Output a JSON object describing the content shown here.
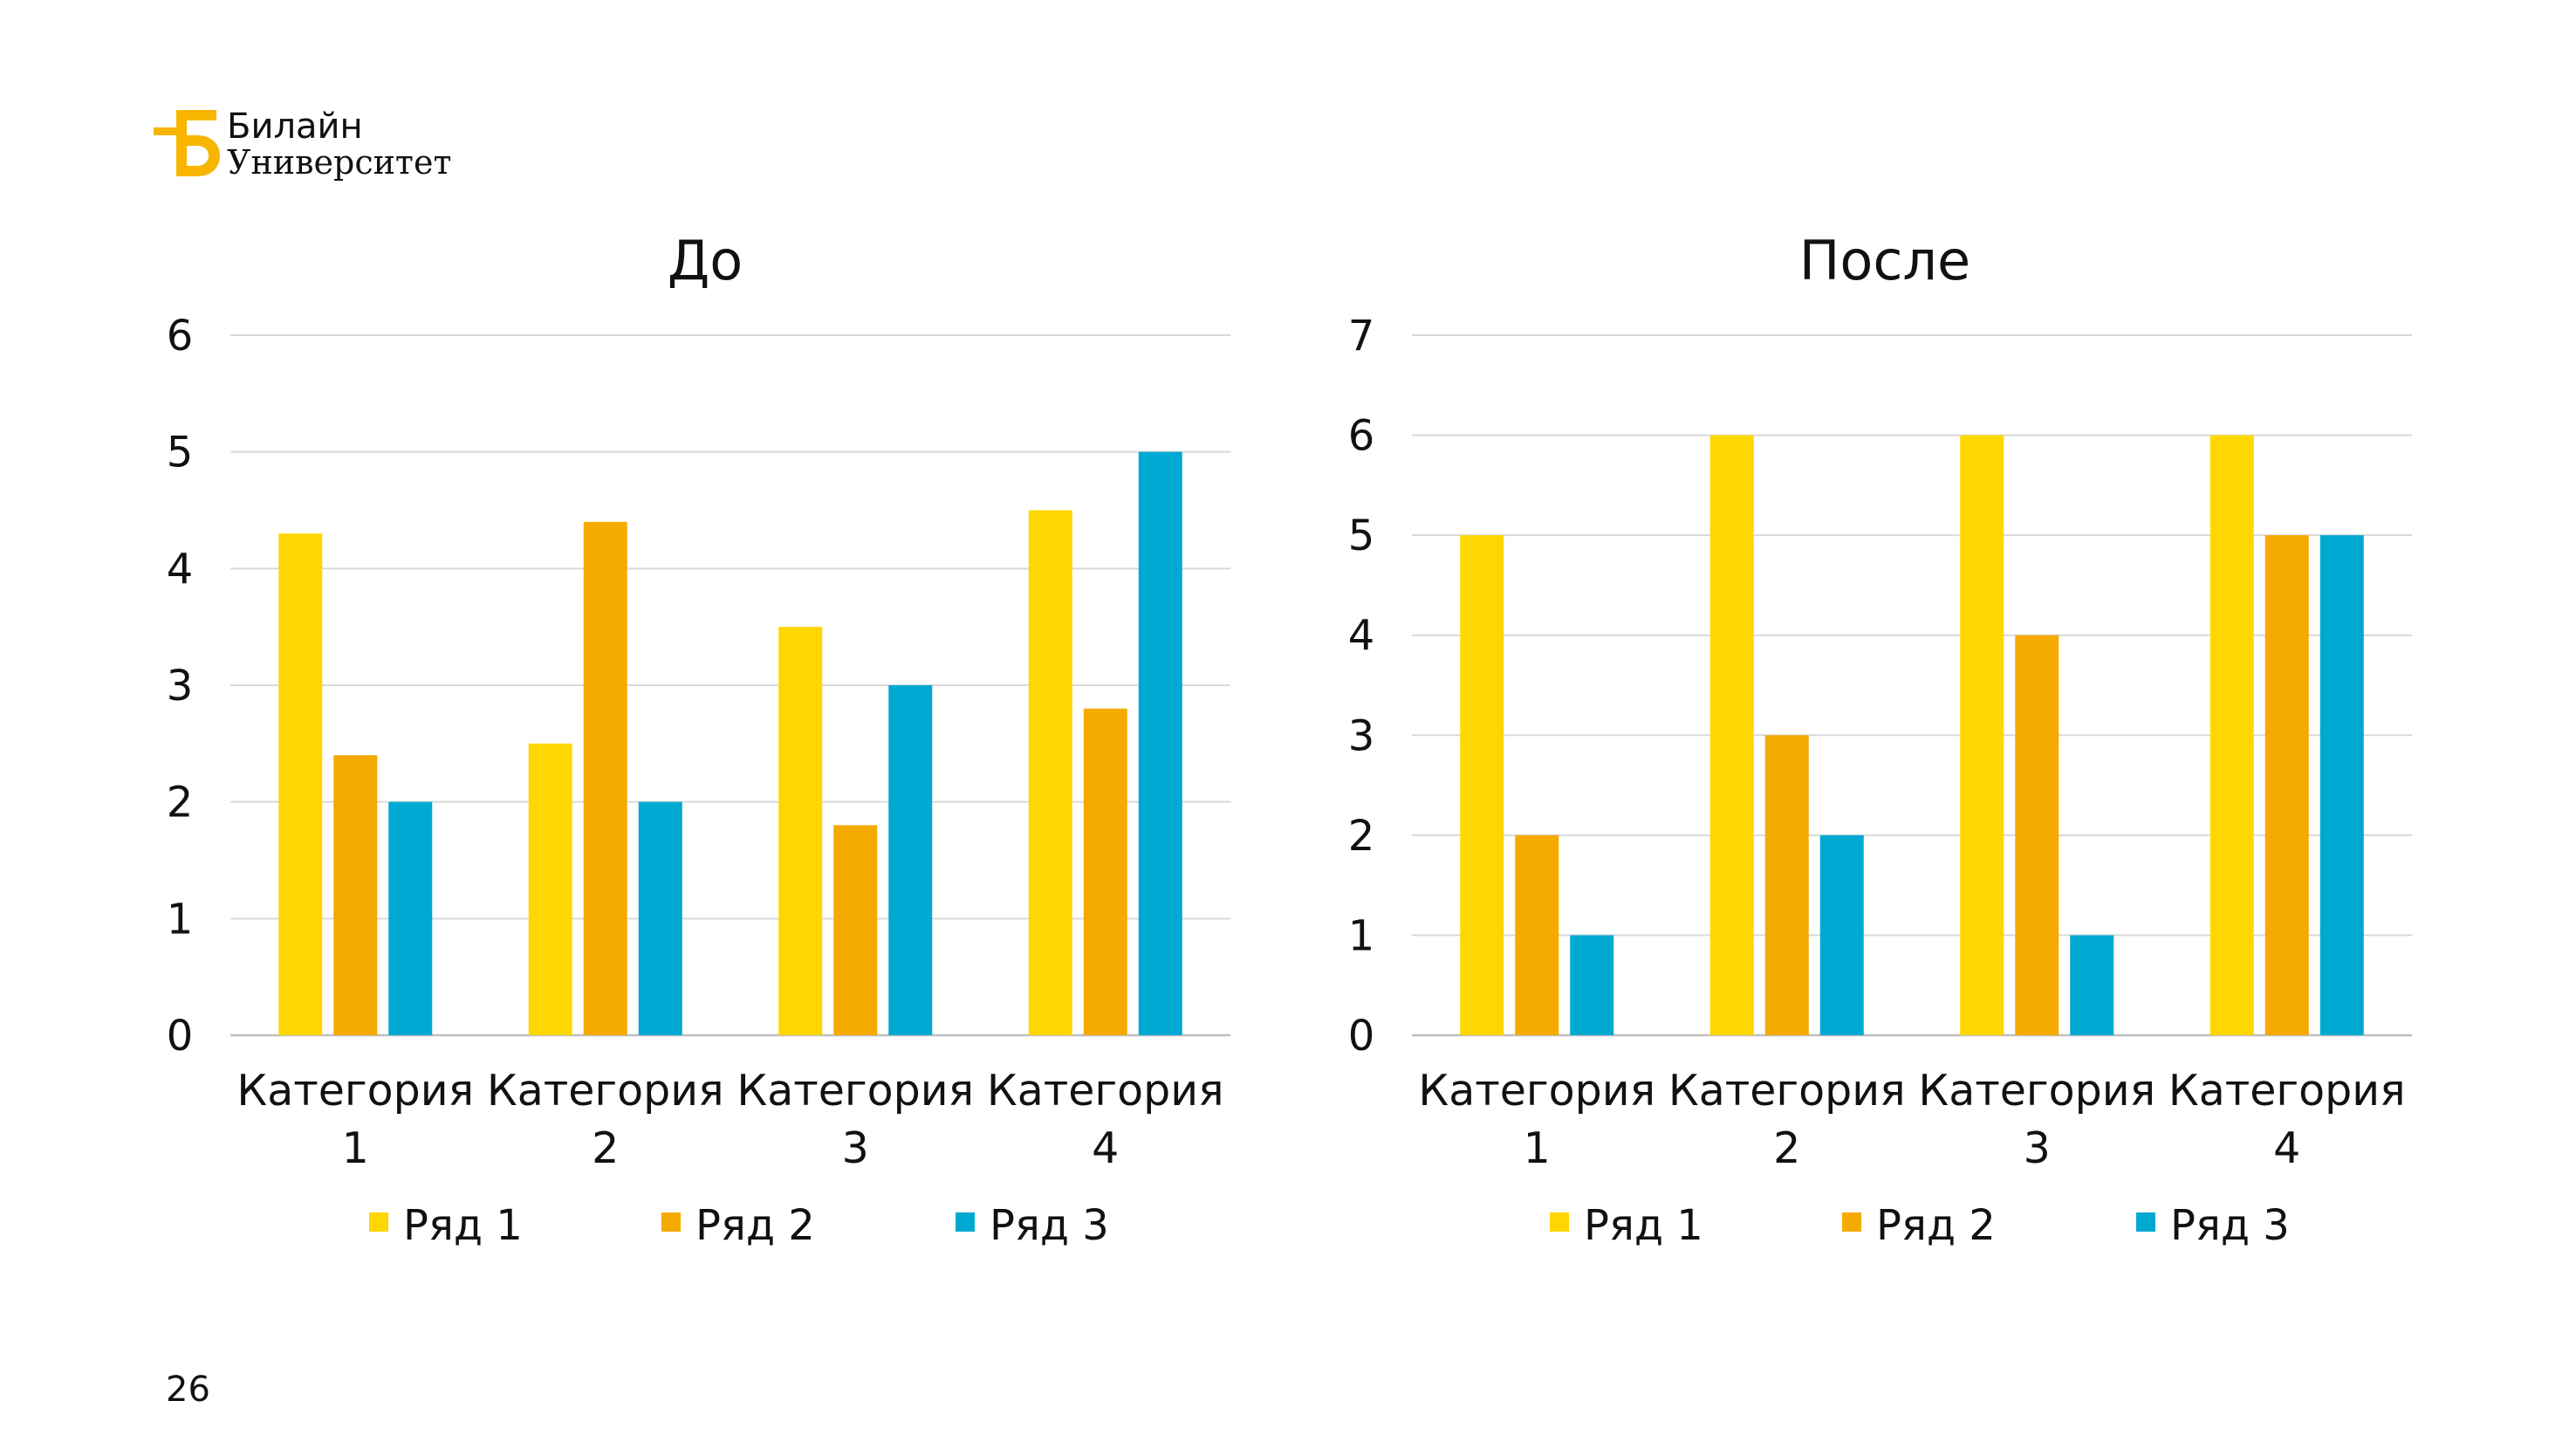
{
  "brand": {
    "logo_icon": "beeline-b-icon",
    "line1": "Билайн",
    "line2": "Университет",
    "color": "#F7B500"
  },
  "page_number": "26",
  "series_colors": [
    "#FFD700",
    "#F5AA00",
    "#00A9D2"
  ],
  "chart_data": [
    {
      "type": "bar",
      "title": "До",
      "categories": [
        [
          "Категория",
          "1"
        ],
        [
          "Категория",
          "2"
        ],
        [
          "Категория",
          "3"
        ],
        [
          "Категория",
          "4"
        ]
      ],
      "series": [
        {
          "name": "Ряд 1",
          "values": [
            4.3,
            2.5,
            3.5,
            4.5
          ]
        },
        {
          "name": "Ряд 2",
          "values": [
            2.4,
            4.4,
            1.8,
            2.8
          ]
        },
        {
          "name": "Ряд 3",
          "values": [
            2,
            2,
            3,
            5
          ]
        }
      ],
      "ylim": [
        0,
        6
      ],
      "yticks": [
        "0",
        "1",
        "2",
        "3",
        "4",
        "5",
        "6"
      ],
      "grid": true,
      "legend": "bottom"
    },
    {
      "type": "bar",
      "title": "После",
      "categories": [
        [
          "Категория",
          "1"
        ],
        [
          "Категория",
          "2"
        ],
        [
          "Категория",
          "3"
        ],
        [
          "Категория",
          "4"
        ]
      ],
      "series": [
        {
          "name": "Ряд 1",
          "values": [
            5,
            6,
            6,
            6
          ]
        },
        {
          "name": "Ряд 2",
          "values": [
            2,
            3,
            4,
            5
          ]
        },
        {
          "name": "Ряд 3",
          "values": [
            1,
            2,
            1,
            5
          ]
        }
      ],
      "ylim": [
        0,
        7
      ],
      "yticks": [
        "0",
        "1",
        "2",
        "3",
        "4",
        "5",
        "6",
        "7"
      ],
      "grid": true,
      "legend": "bottom"
    }
  ]
}
